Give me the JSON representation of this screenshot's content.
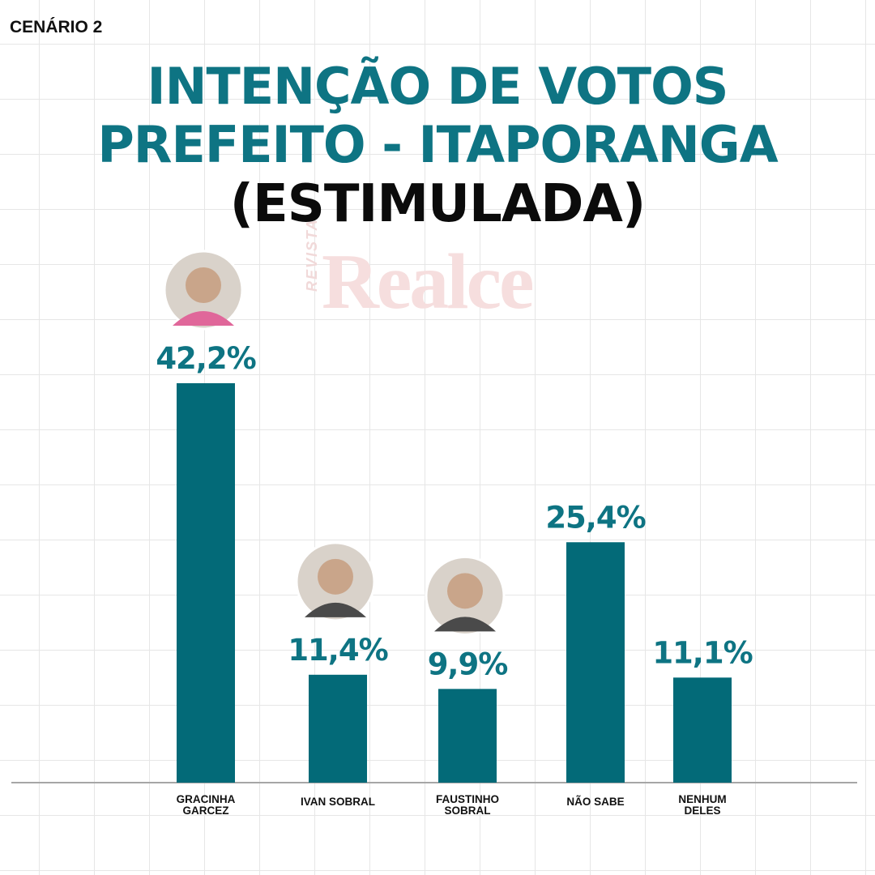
{
  "scenario_label": "CENÁRIO 2",
  "title_line1": "INTENÇÃO DE VOTOS",
  "title_line2": "PREFEITO - ITAPORANGA",
  "title_line3": "(ESTIMULADA)",
  "watermark": {
    "small": "REVISTA",
    "big": "Realce"
  },
  "colors": {
    "bar": "#036a78",
    "accent": "#0e7483",
    "baseline": "#a6a6a6"
  },
  "chart_data": {
    "type": "bar",
    "categories": [
      [
        "GRACINHA",
        "GARCEZ"
      ],
      [
        "IVAN SOBRAL"
      ],
      [
        "FAUSTINHO",
        "SOBRAL"
      ],
      [
        "NÃO SABE"
      ],
      [
        "NENHUM",
        "DELES"
      ]
    ],
    "values": [
      42.2,
      11.4,
      9.9,
      25.4,
      11.1
    ],
    "value_labels": [
      "42,2%",
      "11,4%",
      "9,9%",
      "25,4%",
      "11,1%"
    ],
    "photos": [
      true,
      true,
      true,
      false,
      false
    ],
    "title": "INTENÇÃO DE VOTOS PREFEITO - ITAPORANGA (ESTIMULADA)",
    "ylim": [
      0,
      42.2
    ],
    "grid": false
  }
}
